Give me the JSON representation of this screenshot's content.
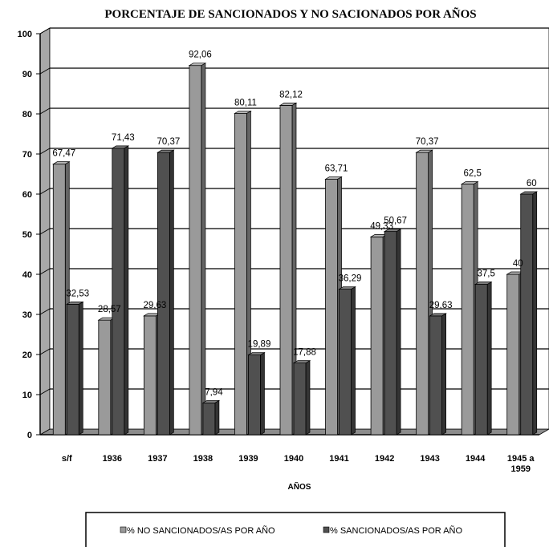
{
  "chart_data": {
    "type": "bar",
    "title": "PORCENTAJE DE SANCIONADOS Y NO SACIONADOS POR AÑOS",
    "xlabel": "AÑOS",
    "ylabel": "",
    "ylim": [
      0,
      100
    ],
    "yticks": [
      0,
      10,
      20,
      30,
      40,
      50,
      60,
      70,
      80,
      90,
      100
    ],
    "grid": true,
    "style": "3d-bars",
    "legend_position": "bottom",
    "categories": [
      [
        "s/f"
      ],
      [
        "1936"
      ],
      [
        "1937"
      ],
      [
        "1938"
      ],
      [
        "1939"
      ],
      [
        "1940"
      ],
      [
        "1941"
      ],
      [
        "1942"
      ],
      [
        "1943"
      ],
      [
        "1944"
      ],
      [
        "1945 a",
        "1959"
      ]
    ],
    "series": [
      {
        "name": "% NO SANCIONADOS/AS POR AÑO",
        "color": "#9a9a9a",
        "values": [
          67.47,
          28.57,
          29.63,
          92.06,
          80.11,
          82.12,
          63.71,
          49.33,
          70.37,
          62.5,
          40
        ],
        "labels": [
          "67,47",
          "28,57",
          "29,63",
          "92,06",
          "80,11",
          "82,12",
          "63,71",
          "49,33",
          "70,37",
          "62,5",
          "40"
        ]
      },
      {
        "name": "% SANCIONADOS/AS POR AÑO",
        "color": "#505050",
        "values": [
          32.53,
          71.43,
          70.37,
          7.94,
          19.89,
          17.88,
          36.29,
          50.67,
          29.63,
          37.5,
          60
        ],
        "labels": [
          "32,53",
          "71,43",
          "70,37",
          "7,94",
          "19,89",
          "17,88",
          "36,29",
          "50,67",
          "29,63",
          "37,5",
          "60"
        ]
      }
    ]
  }
}
